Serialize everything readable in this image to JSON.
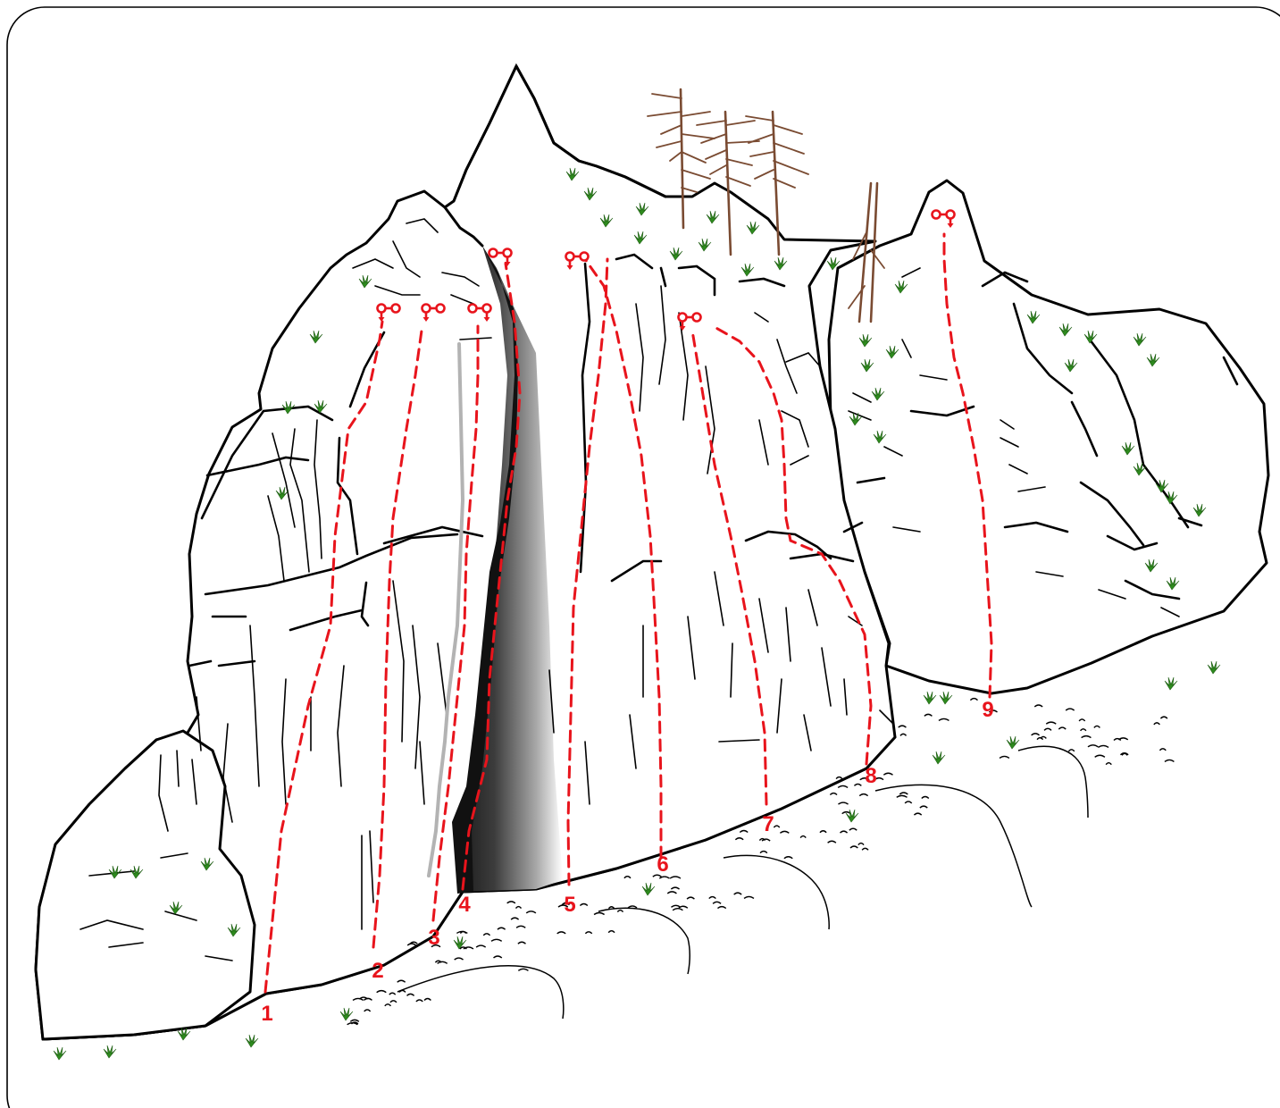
{
  "routes": [
    {
      "number": "1"
    },
    {
      "number": "2"
    },
    {
      "number": "3"
    },
    {
      "number": "4"
    },
    {
      "number": "5"
    },
    {
      "number": "6"
    },
    {
      "number": "7"
    },
    {
      "number": "8"
    },
    {
      "number": "9"
    }
  ],
  "colors": {
    "route_line": "#e8141c",
    "route_label": "#e8141c",
    "rock_outline": "#000000",
    "grass": "#2e8b1e",
    "tree": "#7a4b32",
    "shadow": "#333333",
    "grey_crack": "#b3b3b3"
  },
  "icons": {
    "anchor": "rappel-anchor-icon",
    "vegetation": "grass-tuft-icon",
    "tree": "dead-tree-icon"
  }
}
